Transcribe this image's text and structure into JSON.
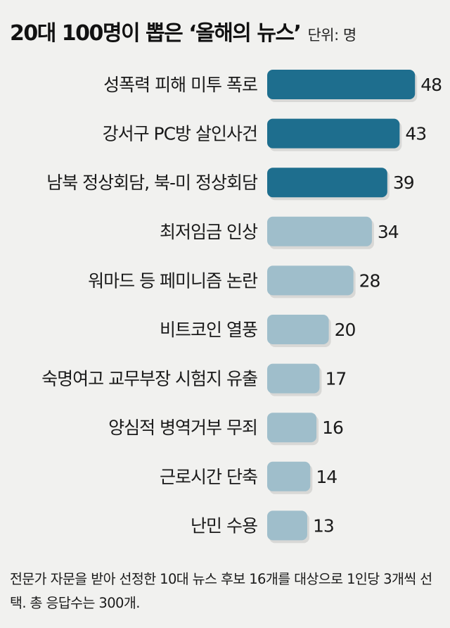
{
  "title": "20대 100명이 뽑은 ‘올해의 뉴스’",
  "unit": "단위: 명",
  "note": "전문가 자문을 받아 선정한 10대 뉴스 후보 16개를 대상으로 1인당 3개씩 선택. 총 응답수는 300개.",
  "colors": {
    "highlight": "#1e6e8e",
    "normal": "#9fbecb"
  },
  "chart_data": {
    "type": "bar",
    "orientation": "horizontal",
    "categories": [
      "성폭력 피해 미투 폭로",
      "강서구 PC방 살인사건",
      "남북 정상회담, 북-미 정상회담",
      "최저임금 인상",
      "워마드 등 페미니즘 논란",
      "비트코인 열풍",
      "숙명여고 교무부장 시험지 유출",
      "양심적 병역거부 무죄",
      "근로시간 단축",
      "난민 수용"
    ],
    "values": [
      48,
      43,
      39,
      34,
      28,
      20,
      17,
      16,
      14,
      13
    ],
    "highlighted": [
      true,
      true,
      true,
      false,
      false,
      false,
      false,
      false,
      false,
      false
    ],
    "grid": false,
    "legend": "none"
  }
}
